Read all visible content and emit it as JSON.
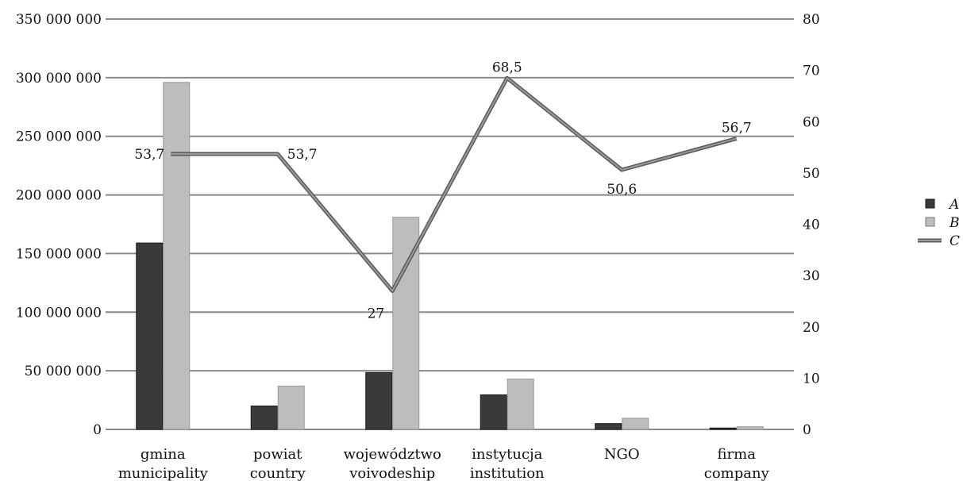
{
  "chart_data": {
    "type": "bar",
    "categories": [
      [
        "gmina",
        "municipality"
      ],
      [
        "powiat",
        "country"
      ],
      [
        "województwo",
        "voivodeship"
      ],
      [
        "instytucja",
        "institution"
      ],
      [
        "NGO"
      ],
      [
        "firma",
        "company"
      ]
    ],
    "series": [
      {
        "name": "A",
        "type": "bar",
        "axis": "left",
        "color": "#3a3a3a",
        "values": [
          159000000,
          20000000,
          48500000,
          29500000,
          5000000,
          1200000
        ]
      },
      {
        "name": "B",
        "type": "bar",
        "axis": "left",
        "color": "#bdbdbd",
        "values": [
          296000000,
          37000000,
          181000000,
          43000000,
          9500000,
          2300000
        ]
      },
      {
        "name": "C",
        "type": "line",
        "axis": "right",
        "color": "#777777",
        "values": [
          53.7,
          53.7,
          27,
          68.5,
          50.6,
          56.7
        ],
        "labels": [
          "53,7",
          "53,7",
          "27",
          "68,5",
          "50,6",
          "56,7"
        ]
      }
    ],
    "y_left": {
      "min": 0,
      "max": 350000000,
      "ticks": [
        0,
        50000000,
        100000000,
        150000000,
        200000000,
        250000000,
        300000000,
        350000000
      ],
      "tick_labels": [
        "0",
        "50 000 000",
        "100 000 000",
        "150 000 000",
        "200 000 000",
        "250 000 000",
        "300 000 000",
        "350 000 000"
      ]
    },
    "y_right": {
      "min": 0,
      "max": 80,
      "ticks": [
        0,
        10,
        20,
        30,
        40,
        50,
        60,
        70,
        80
      ],
      "tick_labels": [
        "0",
        "10",
        "20",
        "30",
        "40",
        "50",
        "60",
        "70",
        "80"
      ]
    },
    "grid": true,
    "legend_position": "right"
  }
}
